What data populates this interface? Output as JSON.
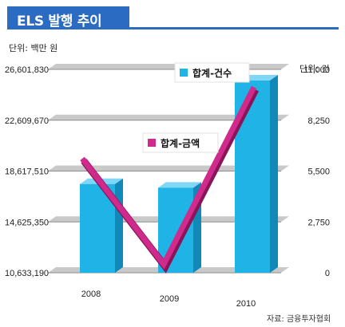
{
  "title": "ELS 발행 추이",
  "unit_left": "단위: 백만 원",
  "unit_right": "단위: 건",
  "source": "자료: 금융투자협회",
  "colors": {
    "title_bg": "#2b6bc2",
    "bar": "#1fb3e6",
    "line": "#d02a8c"
  },
  "chart_data": {
    "type": "bar+line",
    "categories": [
      "2008",
      "2009",
      "2010"
    ],
    "left_axis": {
      "ticks": [
        "26,601,830",
        "22,609,670",
        "18,617,510",
        "14,625,350",
        "10,633,190"
      ],
      "ylim": [
        10633190,
        26601830
      ]
    },
    "right_axis": {
      "ticks": [
        "11,000",
        "8,250",
        "5,500",
        "2,750",
        "0"
      ],
      "ylim": [
        0,
        11000
      ]
    },
    "series": [
      {
        "name": "합계-건수",
        "type": "bar",
        "axis": "right",
        "values": [
          4800,
          4600,
          10400
        ]
      },
      {
        "name": "합계-금액",
        "type": "line",
        "axis": "left",
        "values": [
          19600000,
          11300000,
          25200000
        ]
      }
    ],
    "legend": [
      "합계-건수",
      "합계-금액"
    ]
  }
}
